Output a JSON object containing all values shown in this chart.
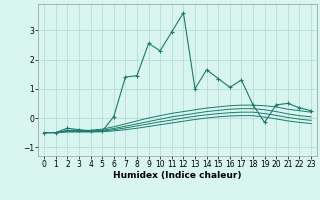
{
  "x": [
    0,
    1,
    2,
    3,
    4,
    5,
    6,
    7,
    8,
    9,
    10,
    11,
    12,
    13,
    14,
    15,
    16,
    17,
    18,
    19,
    20,
    21,
    22,
    23
  ],
  "y_main": [
    -0.5,
    -0.5,
    -0.35,
    -0.4,
    -0.45,
    -0.45,
    0.05,
    1.4,
    1.45,
    2.55,
    2.3,
    2.95,
    3.6,
    1.0,
    1.65,
    1.35,
    1.05,
    1.3,
    0.45,
    -0.15,
    0.45,
    0.5,
    0.35,
    0.25
  ],
  "y_smooth1": [
    -0.5,
    -0.5,
    -0.42,
    -0.42,
    -0.42,
    -0.38,
    -0.3,
    -0.2,
    -0.1,
    0.0,
    0.08,
    0.16,
    0.22,
    0.28,
    0.34,
    0.38,
    0.42,
    0.44,
    0.44,
    0.42,
    0.38,
    0.3,
    0.25,
    0.2
  ],
  "y_smooth2": [
    -0.5,
    -0.5,
    -0.44,
    -0.44,
    -0.44,
    -0.42,
    -0.36,
    -0.28,
    -0.2,
    -0.12,
    -0.04,
    0.04,
    0.1,
    0.16,
    0.22,
    0.26,
    0.3,
    0.32,
    0.32,
    0.28,
    0.22,
    0.14,
    0.08,
    0.04
  ],
  "y_smooth3": [
    -0.5,
    -0.5,
    -0.46,
    -0.46,
    -0.46,
    -0.45,
    -0.4,
    -0.34,
    -0.27,
    -0.2,
    -0.13,
    -0.07,
    0.0,
    0.06,
    0.11,
    0.15,
    0.18,
    0.2,
    0.2,
    0.15,
    0.09,
    0.02,
    -0.04,
    -0.08
  ],
  "y_smooth4": [
    -0.5,
    -0.5,
    -0.48,
    -0.48,
    -0.48,
    -0.47,
    -0.44,
    -0.4,
    -0.35,
    -0.29,
    -0.23,
    -0.17,
    -0.11,
    -0.05,
    0.0,
    0.04,
    0.07,
    0.08,
    0.08,
    0.03,
    -0.03,
    -0.1,
    -0.15,
    -0.19
  ],
  "line_color": "#1a7a6e",
  "bg_color": "#d9f5f0",
  "grid_color": "#b0d8d4",
  "xlabel": "Humidex (Indice chaleur)",
  "xlim": [
    -0.5,
    23.5
  ],
  "ylim": [
    -1.3,
    3.9
  ],
  "yticks": [
    -1,
    0,
    1,
    2,
    3
  ],
  "xticks": [
    0,
    1,
    2,
    3,
    4,
    5,
    6,
    7,
    8,
    9,
    10,
    11,
    12,
    13,
    14,
    15,
    16,
    17,
    18,
    19,
    20,
    21,
    22,
    23
  ]
}
